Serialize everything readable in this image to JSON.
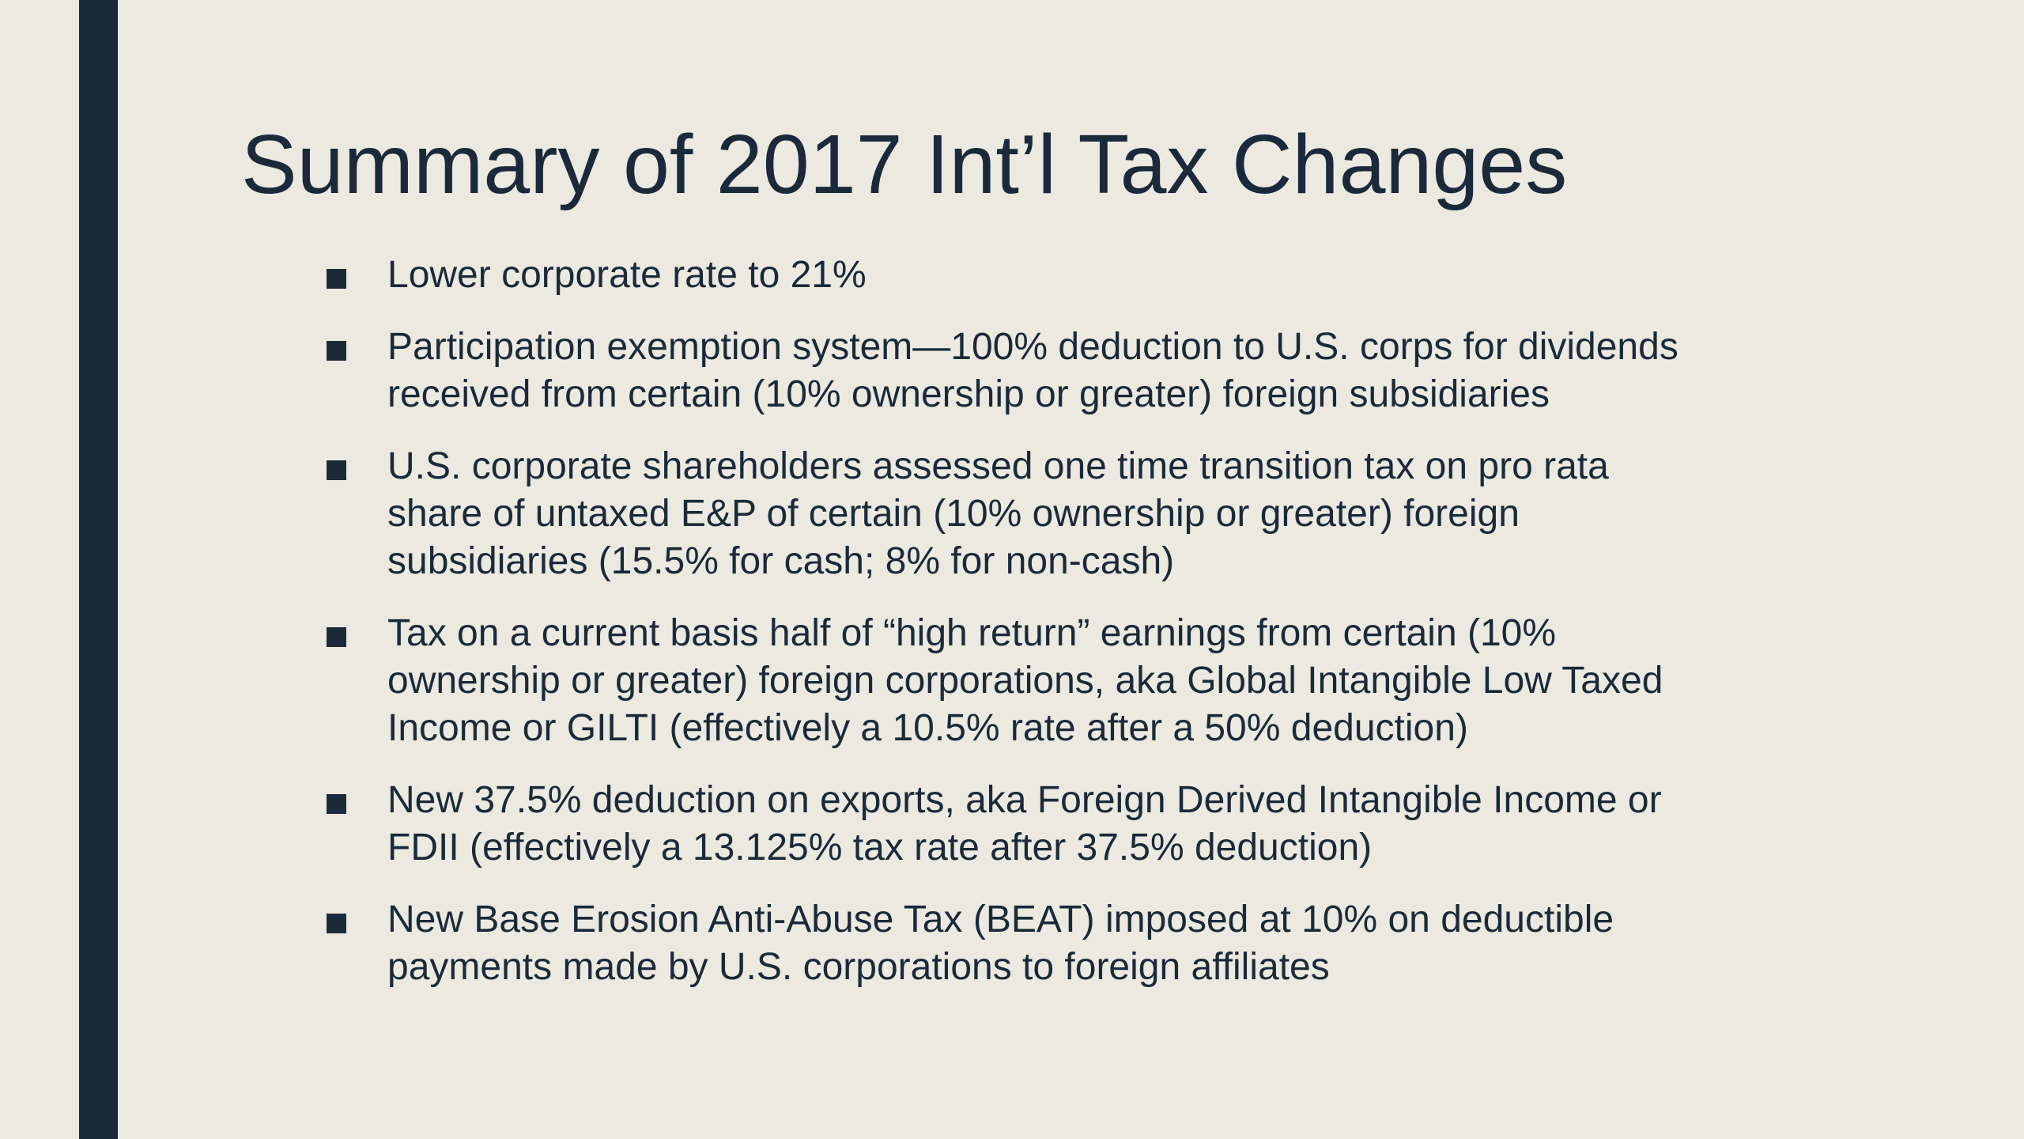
{
  "slide": {
    "title": "Summary of 2017 Int’l Tax Changes",
    "bullets": [
      "Lower corporate rate to 21%",
      "Participation exemption system—100% deduction to U.S. corps for dividends received from certain (10% ownership or greater) foreign subsidiaries",
      "U.S. corporate shareholders assessed one time transition tax on pro rata share of untaxed E&P of certain (10% ownership or greater) foreign subsidiaries (15.5% for cash; 8% for non-cash)",
      "Tax on a current basis half of “high return” earnings from certain (10% ownership or greater) foreign corporations, aka Global Intangible Low Taxed Income or GILTI (effectively a 10.5% rate after a 50% deduction)",
      "New 37.5% deduction on exports, aka Foreign Derived Intangible Income or FDII (effectively a 13.125% tax rate after 37.5% deduction)",
      "New Base Erosion Anti-Abuse Tax (BEAT) imposed at 10% on deductible payments made by U.S. corporations to foreign affiliates"
    ]
  },
  "colors": {
    "background": "#ece9e0",
    "accent": "#1b2a3a",
    "text": "#1b2a3a"
  }
}
